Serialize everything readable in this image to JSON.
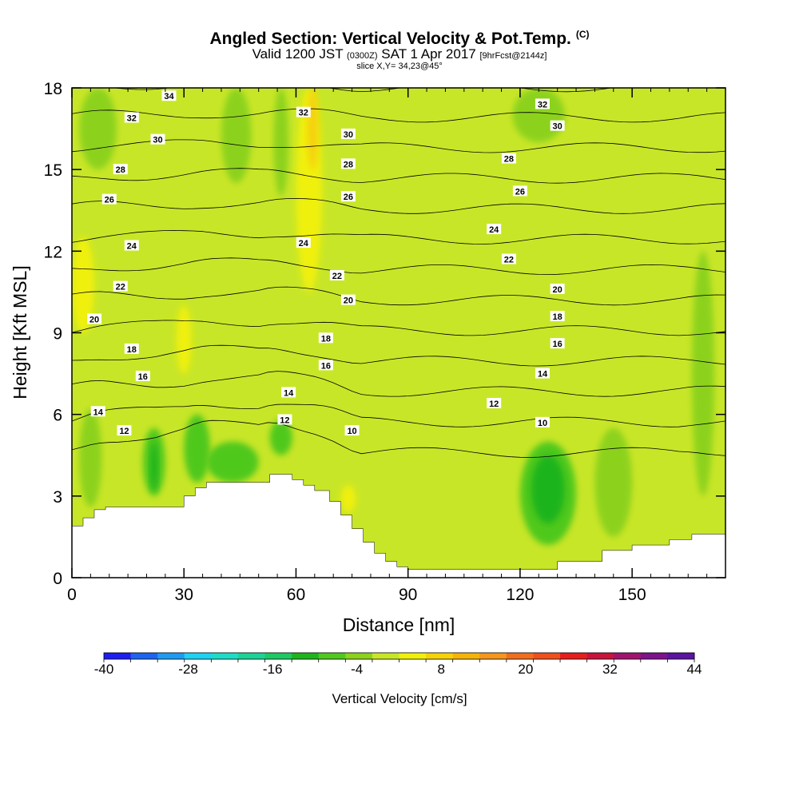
{
  "header": {
    "title": "Angled Section: Vertical Velocity & Pot.Temp.",
    "title_suffix": "(C)",
    "valid_prefix": "Valid 1200 JST",
    "valid_utc": "(0300Z)",
    "valid_date": "SAT 1 Apr 2017",
    "valid_fcst": "[9hrFcst@2144z]",
    "slice": "slice X,Y= 34,23@45°"
  },
  "chart_data": {
    "type": "heatmap",
    "xlabel": "Distance [nm]",
    "ylabel": "Height [Kft MSL]",
    "xlim": [
      0,
      175
    ],
    "ylim": [
      0,
      18
    ],
    "xticks": [
      0,
      30,
      60,
      90,
      120,
      150
    ],
    "yticks": [
      0,
      3,
      6,
      9,
      12,
      15,
      18
    ],
    "colorbar": {
      "label": "Vertical Velocity [cm/s]",
      "ticks": [
        -40,
        -28,
        -16,
        -4,
        8,
        20,
        32,
        44
      ],
      "range": [
        -40,
        44
      ],
      "step": 4,
      "colors": [
        "#1e1ef0",
        "#1e64f0",
        "#1e9bf0",
        "#1ed2f0",
        "#1eddc8",
        "#1ed296",
        "#1ec864",
        "#1eb41e",
        "#50c81e",
        "#8cd21e",
        "#c8e628",
        "#f0f00a",
        "#f5d20a",
        "#f5b40a",
        "#f5961e",
        "#f06e1e",
        "#f0501e",
        "#e61e1e",
        "#c8143c",
        "#a0146e",
        "#7d148c",
        "#5a14a0"
      ]
    },
    "terrain_profile": {
      "x": [
        0,
        3,
        6,
        9,
        22,
        30,
        33,
        36,
        50,
        53,
        56,
        59,
        62,
        65,
        69,
        72,
        75,
        78,
        81,
        84,
        87,
        90,
        120,
        130,
        142,
        150,
        160,
        166,
        175
      ],
      "height": [
        1.9,
        2.2,
        2.5,
        2.6,
        2.6,
        3.0,
        3.3,
        3.5,
        3.5,
        3.8,
        3.8,
        3.6,
        3.4,
        3.2,
        2.8,
        2.3,
        1.8,
        1.3,
        0.9,
        0.6,
        0.4,
        0.3,
        0.3,
        0.6,
        1.0,
        1.2,
        1.4,
        1.6,
        1.6
      ]
    },
    "theta_contours": {
      "levels": [
        10,
        12,
        14,
        16,
        18,
        20,
        22,
        24,
        26,
        28,
        30,
        32,
        34
      ],
      "labels": [
        {
          "text": "34",
          "x": 26,
          "y": 17.7
        },
        {
          "text": "32",
          "x": 16,
          "y": 16.9
        },
        {
          "text": "30",
          "x": 23,
          "y": 16.1
        },
        {
          "text": "28",
          "x": 13,
          "y": 15.0
        },
        {
          "text": "26",
          "x": 10,
          "y": 13.9
        },
        {
          "text": "24",
          "x": 16,
          "y": 12.2
        },
        {
          "text": "22",
          "x": 13,
          "y": 10.7
        },
        {
          "text": "20",
          "x": 6,
          "y": 9.5
        },
        {
          "text": "18",
          "x": 16,
          "y": 8.4
        },
        {
          "text": "16",
          "x": 19,
          "y": 7.4
        },
        {
          "text": "14",
          "x": 7,
          "y": 6.1
        },
        {
          "text": "12",
          "x": 14,
          "y": 5.4
        },
        {
          "text": "32",
          "x": 62,
          "y": 17.1
        },
        {
          "text": "30",
          "x": 74,
          "y": 16.3
        },
        {
          "text": "28",
          "x": 74,
          "y": 15.2
        },
        {
          "text": "26",
          "x": 74,
          "y": 14.0
        },
        {
          "text": "24",
          "x": 62,
          "y": 12.3
        },
        {
          "text": "22",
          "x": 71,
          "y": 11.1
        },
        {
          "text": "20",
          "x": 74,
          "y": 10.2
        },
        {
          "text": "18",
          "x": 68,
          "y": 8.8
        },
        {
          "text": "16",
          "x": 68,
          "y": 7.8
        },
        {
          "text": "14",
          "x": 58,
          "y": 6.8
        },
        {
          "text": "12",
          "x": 57,
          "y": 5.8
        },
        {
          "text": "10",
          "x": 75,
          "y": 5.4
        },
        {
          "text": "32",
          "x": 126,
          "y": 17.4
        },
        {
          "text": "30",
          "x": 130,
          "y": 16.6
        },
        {
          "text": "28",
          "x": 117,
          "y": 15.4
        },
        {
          "text": "26",
          "x": 120,
          "y": 14.2
        },
        {
          "text": "24",
          "x": 113,
          "y": 12.8
        },
        {
          "text": "22",
          "x": 117,
          "y": 11.7
        },
        {
          "text": "20",
          "x": 130,
          "y": 10.6
        },
        {
          "text": "18",
          "x": 130,
          "y": 9.6
        },
        {
          "text": "16",
          "x": 130,
          "y": 8.6
        },
        {
          "text": "14",
          "x": 126,
          "y": 7.5
        },
        {
          "text": "12",
          "x": 113,
          "y": 6.4
        },
        {
          "text": "10",
          "x": 126,
          "y": 5.7
        }
      ]
    },
    "velocity_regions": [
      {
        "v": -4,
        "x": [
          2,
          8
        ],
        "y": [
          2.6,
          6.2
        ]
      },
      {
        "v": -8,
        "x": [
          19,
          25
        ],
        "y": [
          3.0,
          5.5
        ]
      },
      {
        "v": -12,
        "x": [
          21,
          23
        ],
        "y": [
          3.2,
          5.0
        ]
      },
      {
        "v": -8,
        "x": [
          30,
          37
        ],
        "y": [
          3.5,
          6.0
        ]
      },
      {
        "v": -8,
        "x": [
          36,
          50
        ],
        "y": [
          3.5,
          5.0
        ]
      },
      {
        "v": -8,
        "x": [
          53,
          59
        ],
        "y": [
          4.5,
          5.8
        ]
      },
      {
        "v": 4,
        "x": [
          60,
          67
        ],
        "y": [
          10.5,
          18.0
        ]
      },
      {
        "v": 8,
        "x": [
          63,
          66
        ],
        "y": [
          15.0,
          18.0
        ]
      },
      {
        "v": 4,
        "x": [
          0,
          6
        ],
        "y": [
          9.0,
          12.5
        ]
      },
      {
        "v": 4,
        "x": [
          28,
          32
        ],
        "y": [
          7.5,
          10.0
        ]
      },
      {
        "v": 4,
        "x": [
          72,
          76
        ],
        "y": [
          2.4,
          3.4
        ]
      },
      {
        "v": -8,
        "x": [
          120,
          135
        ],
        "y": [
          1.2,
          5.0
        ]
      },
      {
        "v": -12,
        "x": [
          123,
          132
        ],
        "y": [
          2.0,
          4.5
        ]
      },
      {
        "v": -4,
        "x": [
          140,
          150
        ],
        "y": [
          1.5,
          5.5
        ]
      },
      {
        "v": -4,
        "x": [
          166,
          172
        ],
        "y": [
          3.0,
          12.0
        ]
      },
      {
        "v": -4,
        "x": [
          2,
          12
        ],
        "y": [
          15.0,
          18.0
        ]
      },
      {
        "v": -4,
        "x": [
          40,
          48
        ],
        "y": [
          14.5,
          18.0
        ]
      },
      {
        "v": -4,
        "x": [
          54,
          58
        ],
        "y": [
          14.0,
          18.0
        ]
      },
      {
        "v": -4,
        "x": [
          118,
          132
        ],
        "y": [
          16.0,
          18.0
        ]
      }
    ]
  }
}
